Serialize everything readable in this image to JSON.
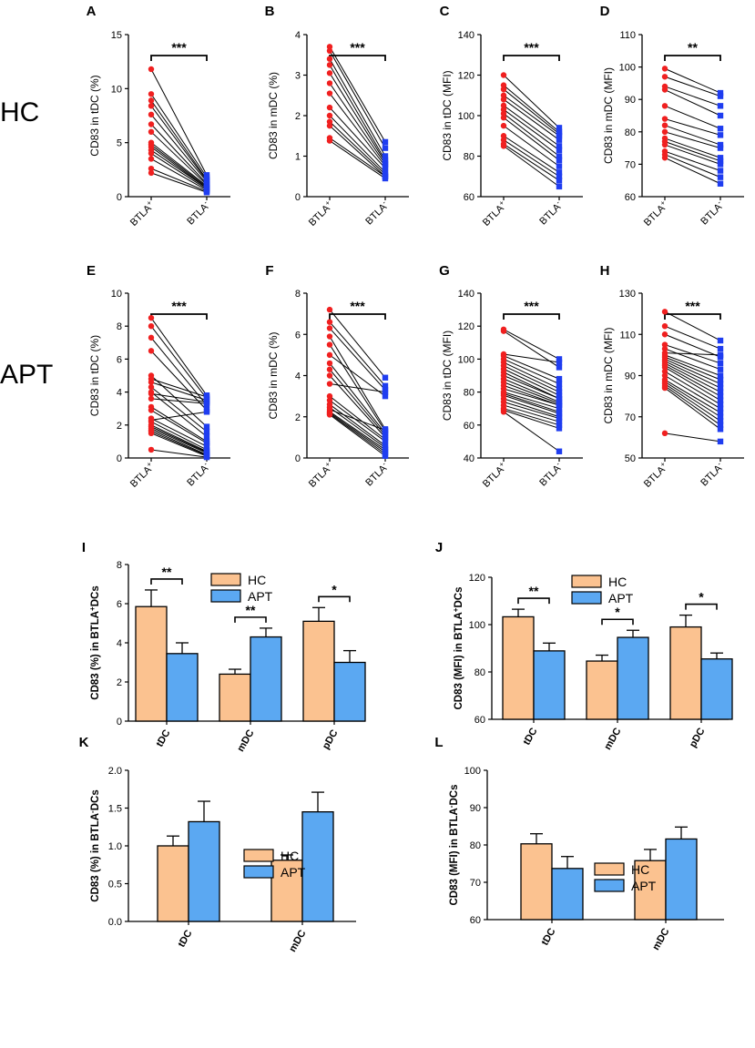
{
  "figure": {
    "row_labels": [
      "HC",
      "APT"
    ],
    "colors": {
      "red": "#f02020",
      "blue": "#1f3df0",
      "hc_bar": "#fbc290",
      "apt_bar": "#5ba8f2",
      "line": "#000000"
    }
  },
  "chart_data": [
    {
      "id": "A",
      "type": "scatter",
      "panel_label": "A",
      "ylabel": "CD83 in tDC (%)",
      "ylim": [
        0,
        15
      ],
      "yticks": [
        "0",
        "5",
        "10",
        "15"
      ],
      "xticks": [
        "BTLA",
        "BTLA"
      ],
      "xtick_sups": [
        "+",
        "-"
      ],
      "sig": "***",
      "pairs": [
        [
          11.8,
          2.0
        ],
        [
          9.5,
          1.8
        ],
        [
          8.9,
          1.6
        ],
        [
          8.4,
          1.5
        ],
        [
          7.6,
          1.4
        ],
        [
          6.7,
          1.2
        ],
        [
          6.0,
          1.1
        ],
        [
          5.0,
          1.0
        ],
        [
          4.8,
          0.9
        ],
        [
          4.6,
          0.8
        ],
        [
          4.3,
          0.8
        ],
        [
          4.0,
          0.7
        ],
        [
          3.5,
          0.6
        ],
        [
          2.6,
          0.5
        ],
        [
          2.2,
          0.4
        ]
      ]
    },
    {
      "id": "B",
      "type": "scatter",
      "panel_label": "B",
      "ylabel": "CD83 in mDC (%)",
      "ylim": [
        0,
        4
      ],
      "yticks": [
        "0",
        "1",
        "2",
        "3",
        "4"
      ],
      "xticks": [
        "BTLA",
        "BTLA"
      ],
      "xtick_sups": [
        "+",
        "-"
      ],
      "sig": "***",
      "pairs": [
        [
          3.7,
          1.35
        ],
        [
          3.6,
          1.2
        ],
        [
          3.4,
          1.0
        ],
        [
          3.25,
          0.9
        ],
        [
          3.05,
          0.85
        ],
        [
          2.8,
          0.8
        ],
        [
          2.55,
          0.75
        ],
        [
          2.2,
          0.7
        ],
        [
          2.0,
          0.6
        ],
        [
          1.85,
          0.55
        ],
        [
          1.75,
          0.5
        ],
        [
          1.45,
          0.5
        ],
        [
          1.38,
          0.45
        ]
      ]
    },
    {
      "id": "C",
      "type": "scatter",
      "panel_label": "C",
      "ylabel": "CD83 in tDC (MFI)",
      "ylim": [
        60,
        140
      ],
      "yticks": [
        "60",
        "80",
        "100",
        "120",
        "140"
      ],
      "xticks": [
        "BTLA",
        "BTLA"
      ],
      "xtick_sups": [
        "+",
        "-"
      ],
      "sig": "***",
      "pairs": [
        [
          120,
          94
        ],
        [
          115,
          92
        ],
        [
          113,
          91
        ],
        [
          110,
          90
        ],
        [
          108,
          88
        ],
        [
          105,
          85
        ],
        [
          103,
          83
        ],
        [
          101,
          80
        ],
        [
          99,
          78
        ],
        [
          95,
          75
        ],
        [
          90,
          72
        ],
        [
          88,
          70
        ],
        [
          86,
          68
        ],
        [
          85,
          65
        ]
      ]
    },
    {
      "id": "D",
      "type": "scatter",
      "panel_label": "D",
      "ylabel": "CD83 in mDC (MFI)",
      "ylim": [
        60,
        110
      ],
      "yticks": [
        "60",
        "70",
        "80",
        "90",
        "100",
        "110"
      ],
      "xticks": [
        "BTLA",
        "BTLA"
      ],
      "xtick_sups": [
        "+",
        "-"
      ],
      "sig": "**",
      "pairs": [
        [
          99.5,
          92
        ],
        [
          97,
          91
        ],
        [
          94,
          88
        ],
        [
          93,
          85
        ],
        [
          88,
          81
        ],
        [
          84,
          79
        ],
        [
          82,
          76
        ],
        [
          80,
          75
        ],
        [
          78,
          72
        ],
        [
          77,
          71
        ],
        [
          76,
          70
        ],
        [
          74,
          68
        ],
        [
          73,
          66
        ],
        [
          72,
          64
        ]
      ]
    },
    {
      "id": "E",
      "type": "scatter",
      "panel_label": "E",
      "ylabel": "CD83 in tDC (%)",
      "ylim": [
        0,
        10
      ],
      "yticks": [
        "0",
        "2",
        "4",
        "6",
        "8",
        "10"
      ],
      "xticks": [
        "BTLA",
        "BTLA"
      ],
      "xtick_sups": [
        "+",
        "-"
      ],
      "sig": "***",
      "pairs": [
        [
          8.5,
          3.8
        ],
        [
          8.0,
          3.6
        ],
        [
          7.3,
          3.2
        ],
        [
          6.5,
          2.9
        ],
        [
          5.0,
          1.9
        ],
        [
          4.8,
          3.7
        ],
        [
          4.6,
          3.5
        ],
        [
          4.3,
          1.6
        ],
        [
          4.0,
          1.3
        ],
        [
          3.9,
          3.4
        ],
        [
          3.6,
          3.3
        ],
        [
          3.1,
          1.0
        ],
        [
          2.9,
          0.9
        ],
        [
          2.4,
          0.7
        ],
        [
          2.3,
          2.8
        ],
        [
          2.2,
          0.5
        ],
        [
          2.0,
          0.4
        ],
        [
          1.9,
          0.35
        ],
        [
          1.8,
          0.3
        ],
        [
          1.7,
          0.2
        ],
        [
          1.6,
          0.15
        ],
        [
          1.5,
          0.1
        ],
        [
          0.5,
          0.05
        ]
      ]
    },
    {
      "id": "F",
      "type": "scatter",
      "panel_label": "F",
      "ylabel": "CD83 in mDC (%)",
      "ylim": [
        0,
        8
      ],
      "yticks": [
        "0",
        "2",
        "4",
        "6",
        "8"
      ],
      "xticks": [
        "BTLA",
        "BTLA"
      ],
      "xtick_sups": [
        "+",
        "-"
      ],
      "sig": "***",
      "pairs": [
        [
          7.2,
          3.9
        ],
        [
          6.6,
          3.5
        ],
        [
          6.3,
          3.3
        ],
        [
          5.9,
          1.4
        ],
        [
          5.5,
          1.3
        ],
        [
          5.0,
          3.0
        ],
        [
          4.6,
          1.2
        ],
        [
          4.3,
          1.1
        ],
        [
          4.0,
          1.0
        ],
        [
          3.6,
          3.2
        ],
        [
          3.0,
          0.9
        ],
        [
          2.8,
          0.8
        ],
        [
          2.6,
          0.6
        ],
        [
          2.45,
          0.5
        ],
        [
          2.35,
          1.35
        ],
        [
          2.25,
          0.4
        ],
        [
          2.2,
          0.3
        ],
        [
          2.15,
          0.2
        ],
        [
          2.1,
          0.1
        ]
      ]
    },
    {
      "id": "G",
      "type": "scatter",
      "panel_label": "G",
      "ylabel": "CD83 in tDC (MFI)",
      "ylim": [
        40,
        140
      ],
      "yticks": [
        "40",
        "60",
        "80",
        "100",
        "120",
        "140"
      ],
      "xticks": [
        "BTLA",
        "BTLA"
      ],
      "xtick_sups": [
        "+",
        "-"
      ],
      "sig": "***",
      "pairs": [
        [
          118,
          100
        ],
        [
          117,
          95
        ],
        [
          103,
          98
        ],
        [
          102,
          88
        ],
        [
          100,
          85
        ],
        [
          98,
          82
        ],
        [
          96,
          80
        ],
        [
          94,
          78
        ],
        [
          92,
          76
        ],
        [
          90,
          76
        ],
        [
          88,
          74
        ],
        [
          86,
          73
        ],
        [
          84,
          72
        ],
        [
          82,
          72
        ],
        [
          80,
          70
        ],
        [
          79,
          68
        ],
        [
          78,
          67
        ],
        [
          76,
          65
        ],
        [
          74,
          64
        ],
        [
          72,
          62
        ],
        [
          70,
          60
        ],
        [
          69,
          58
        ],
        [
          68,
          44
        ]
      ]
    },
    {
      "id": "H",
      "type": "scatter",
      "panel_label": "H",
      "ylabel": "CD83 in mDC (MFI)",
      "ylim": [
        50,
        130
      ],
      "yticks": [
        "50",
        "70",
        "90",
        "110",
        "130"
      ],
      "xticks": [
        "BTLA",
        "BTLA"
      ],
      "xtick_sups": [
        "+",
        "-"
      ],
      "sig": "***",
      "pairs": [
        [
          121,
          107
        ],
        [
          114,
          103
        ],
        [
          110,
          99
        ],
        [
          105,
          96
        ],
        [
          103,
          93
        ],
        [
          101,
          100
        ],
        [
          100,
          90
        ],
        [
          99,
          88
        ],
        [
          98,
          86
        ],
        [
          97,
          84
        ],
        [
          96,
          82
        ],
        [
          95,
          80
        ],
        [
          94,
          78
        ],
        [
          92,
          76
        ],
        [
          90,
          74
        ],
        [
          88,
          72
        ],
        [
          87,
          70
        ],
        [
          86,
          68
        ],
        [
          85,
          66
        ],
        [
          84,
          64
        ],
        [
          62,
          58
        ]
      ]
    },
    {
      "id": "I",
      "type": "bar",
      "panel_label": "I",
      "ylabel_main": "CD83 (%) in BTLA",
      "ylabel_sup": "+",
      "ylabel_tail": "DCs",
      "ylim": [
        0,
        8
      ],
      "yticks": [
        "0",
        "2",
        "4",
        "6",
        "8"
      ],
      "categories": [
        "tDC",
        "mDC",
        "pDC"
      ],
      "series": [
        {
          "name": "HC",
          "values": [
            5.85,
            2.4,
            5.1
          ],
          "errors": [
            0.85,
            0.25,
            0.7
          ]
        },
        {
          "name": "APT",
          "values": [
            3.45,
            4.3,
            3.0
          ],
          "errors": [
            0.55,
            0.45,
            0.6
          ]
        }
      ],
      "sigs": [
        "**",
        "**",
        "*"
      ]
    },
    {
      "id": "J",
      "type": "bar",
      "panel_label": "J",
      "ylabel_main": "CD83 (MFI) in BTLA",
      "ylabel_sup": "+",
      "ylabel_tail": "DCs",
      "ylim": [
        60,
        120
      ],
      "yticks": [
        "60",
        "80",
        "100",
        "120"
      ],
      "categories": [
        "tDC",
        "mDC",
        "pDC"
      ],
      "series": [
        {
          "name": "HC",
          "values": [
            103.3,
            84.6,
            99.0
          ],
          "errors": [
            3.2,
            2.5,
            5.0
          ]
        },
        {
          "name": "APT",
          "values": [
            88.9,
            94.6,
            85.5
          ],
          "errors": [
            3.3,
            3.0,
            2.5
          ]
        }
      ],
      "sigs": [
        "**",
        "*",
        "*"
      ]
    },
    {
      "id": "K",
      "type": "bar",
      "panel_label": "K",
      "ylabel_main": "CD83 (%) in BTLA",
      "ylabel_sup": "-",
      "ylabel_tail": "DCs",
      "ylim": [
        0,
        2.0
      ],
      "yticks": [
        "0.0",
        "0.5",
        "1.0",
        "1.5",
        "2.0"
      ],
      "categories": [
        "tDC",
        "mDC"
      ],
      "series": [
        {
          "name": "HC",
          "values": [
            1.0,
            0.81
          ],
          "errors": [
            0.13,
            0.07
          ]
        },
        {
          "name": "APT",
          "values": [
            1.32,
            1.45
          ],
          "errors": [
            0.27,
            0.26
          ]
        }
      ],
      "sigs": []
    },
    {
      "id": "L",
      "type": "bar",
      "panel_label": "L",
      "ylabel_main": "CD83 (MFI) in BTLA",
      "ylabel_sup": "-",
      "ylabel_tail": "DCs",
      "ylim": [
        60,
        100
      ],
      "yticks": [
        "60",
        "70",
        "80",
        "90",
        "100"
      ],
      "categories": [
        "tDC",
        "mDC"
      ],
      "series": [
        {
          "name": "HC",
          "values": [
            80.3,
            75.8
          ],
          "errors": [
            2.7,
            3.0
          ]
        },
        {
          "name": "APT",
          "values": [
            73.7,
            81.6
          ],
          "errors": [
            3.2,
            3.2
          ]
        }
      ],
      "sigs": []
    }
  ]
}
